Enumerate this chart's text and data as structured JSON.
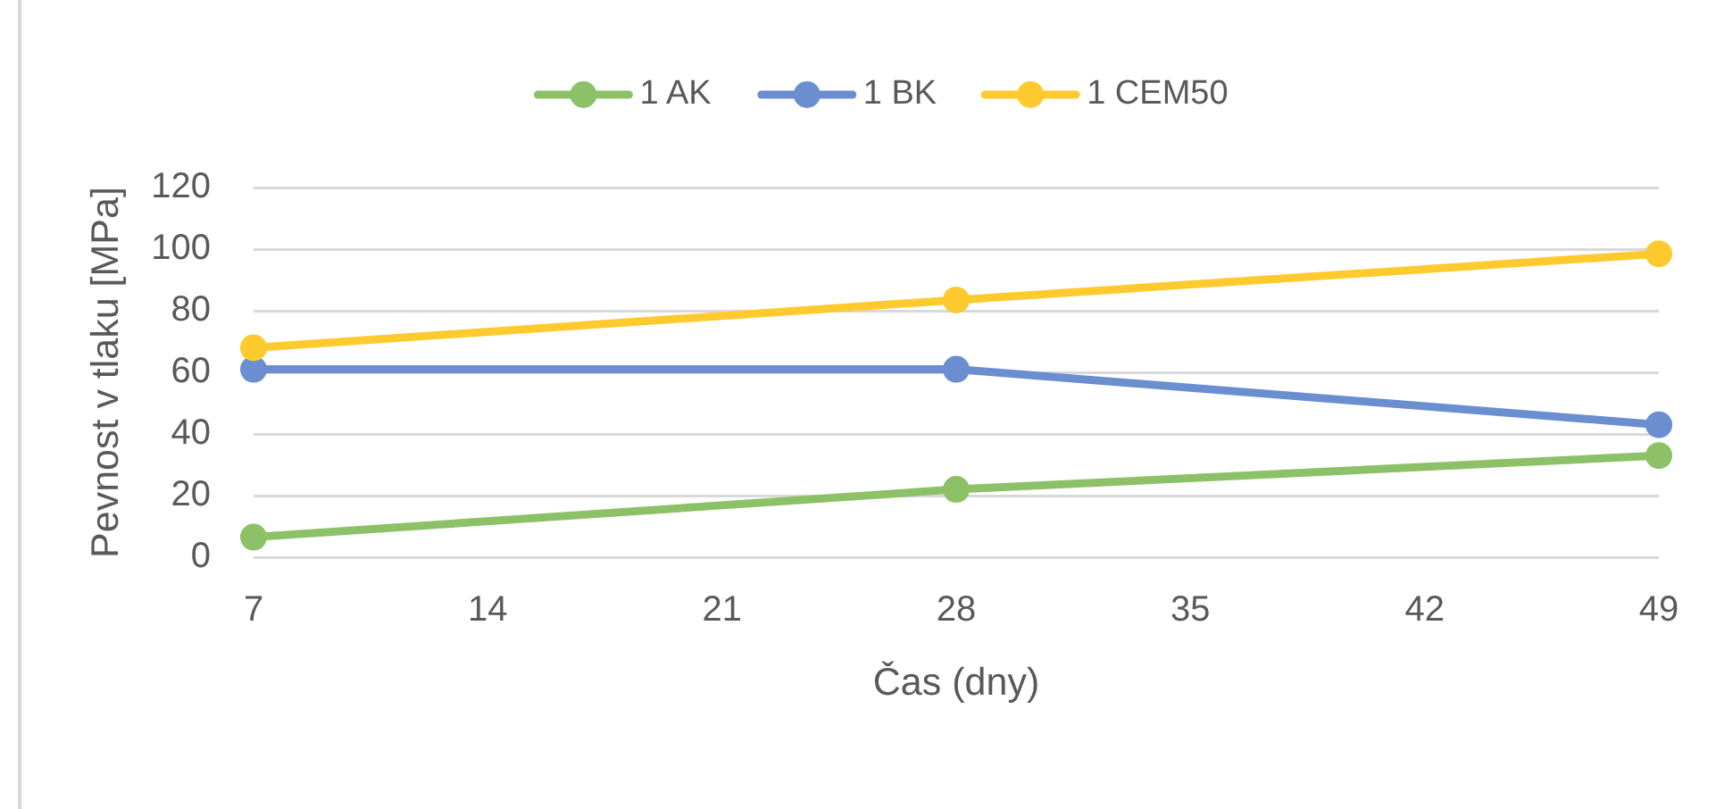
{
  "chart_data": {
    "type": "line",
    "xlabel": "Čas (dny)",
    "ylabel": "Pevnost v tlaku [MPa]",
    "x": [
      7,
      28,
      49
    ],
    "series": [
      {
        "name": "1 AK",
        "color": "#8cc168",
        "values": [
          6.5,
          22,
          33
        ]
      },
      {
        "name": "1 BK",
        "color": "#6a8ed0",
        "values": [
          61,
          61,
          43
        ]
      },
      {
        "name": "1 CEM50",
        "color": "#ffca2e",
        "values": [
          68,
          83.5,
          98.5
        ]
      }
    ],
    "xlim": [
      7,
      49
    ],
    "xticks": [
      7,
      14,
      21,
      28,
      35,
      42,
      49
    ],
    "ylim": [
      0,
      120
    ],
    "yticks": [
      0,
      20,
      40,
      60,
      80,
      100,
      120
    ],
    "grid": "y",
    "legend": "top",
    "marker": "circle",
    "line_style": "solid"
  }
}
